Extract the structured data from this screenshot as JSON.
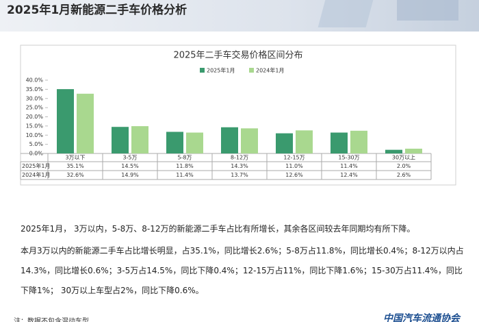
{
  "header": {
    "title": "2025年1月新能源二手车价格分析"
  },
  "chart_data": {
    "type": "bar",
    "title": "2025年二手车交易价格区间分布",
    "categories": [
      "3万以下",
      "3-5万",
      "5-8万",
      "8-12万",
      "12-15万",
      "15-30万",
      "30万以上"
    ],
    "series": [
      {
        "name": "2025年1月",
        "color": "#3a9a6e",
        "values": [
          35.1,
          14.5,
          11.8,
          14.3,
          11.0,
          11.4,
          2.0
        ],
        "value_labels": [
          "35.1%",
          "14.5%",
          "11.8%",
          "14.3%",
          "11.0%",
          "11.4%",
          "2.0%"
        ]
      },
      {
        "name": "2024年1月",
        "color": "#a9d88f",
        "values": [
          32.6,
          14.9,
          11.4,
          13.7,
          12.6,
          12.4,
          2.6
        ],
        "value_labels": [
          "32.6%",
          "14.9%",
          "11.4%",
          "13.7%",
          "12.6%",
          "12.4%",
          "2.6%"
        ]
      }
    ],
    "ylim": [
      0,
      40
    ],
    "yticks": [
      {
        "value": 0,
        "label": "0.0%"
      },
      {
        "value": 5,
        "label": "5.0%"
      },
      {
        "value": 10,
        "label": "10.0%"
      },
      {
        "value": 15,
        "label": "15.0%"
      },
      {
        "value": 20,
        "label": "20.0%"
      },
      {
        "value": 25,
        "label": "25.0%"
      },
      {
        "value": 30,
        "label": "30.0%"
      },
      {
        "value": 35,
        "label": "35.0%"
      },
      {
        "value": 40,
        "label": "40.0%"
      }
    ],
    "legend": "top"
  },
  "text": {
    "paragraphs": [
      "2025年1月， 3万以内，5-8万、8-12万的新能源二手车占比有所增长，其余各区间较去年同期均有所下降。",
      "本月3万以内的新能源二手车占比增长明显，占35.1%，同比增长2.6%；5-8万占11.8%，同比增长0.4%；8-12万以内占14.3%，同比增长0.6%；3-5万占14.5%，同比下降0.4%；12-15万占11%，同比下降1.6%；15-30万占11.4%，同比下降1%； 30万以上车型占2%，同比下降0.6%。"
    ],
    "note": "注：数据不包含混动车型",
    "logo": "中国汽车流通协会"
  }
}
